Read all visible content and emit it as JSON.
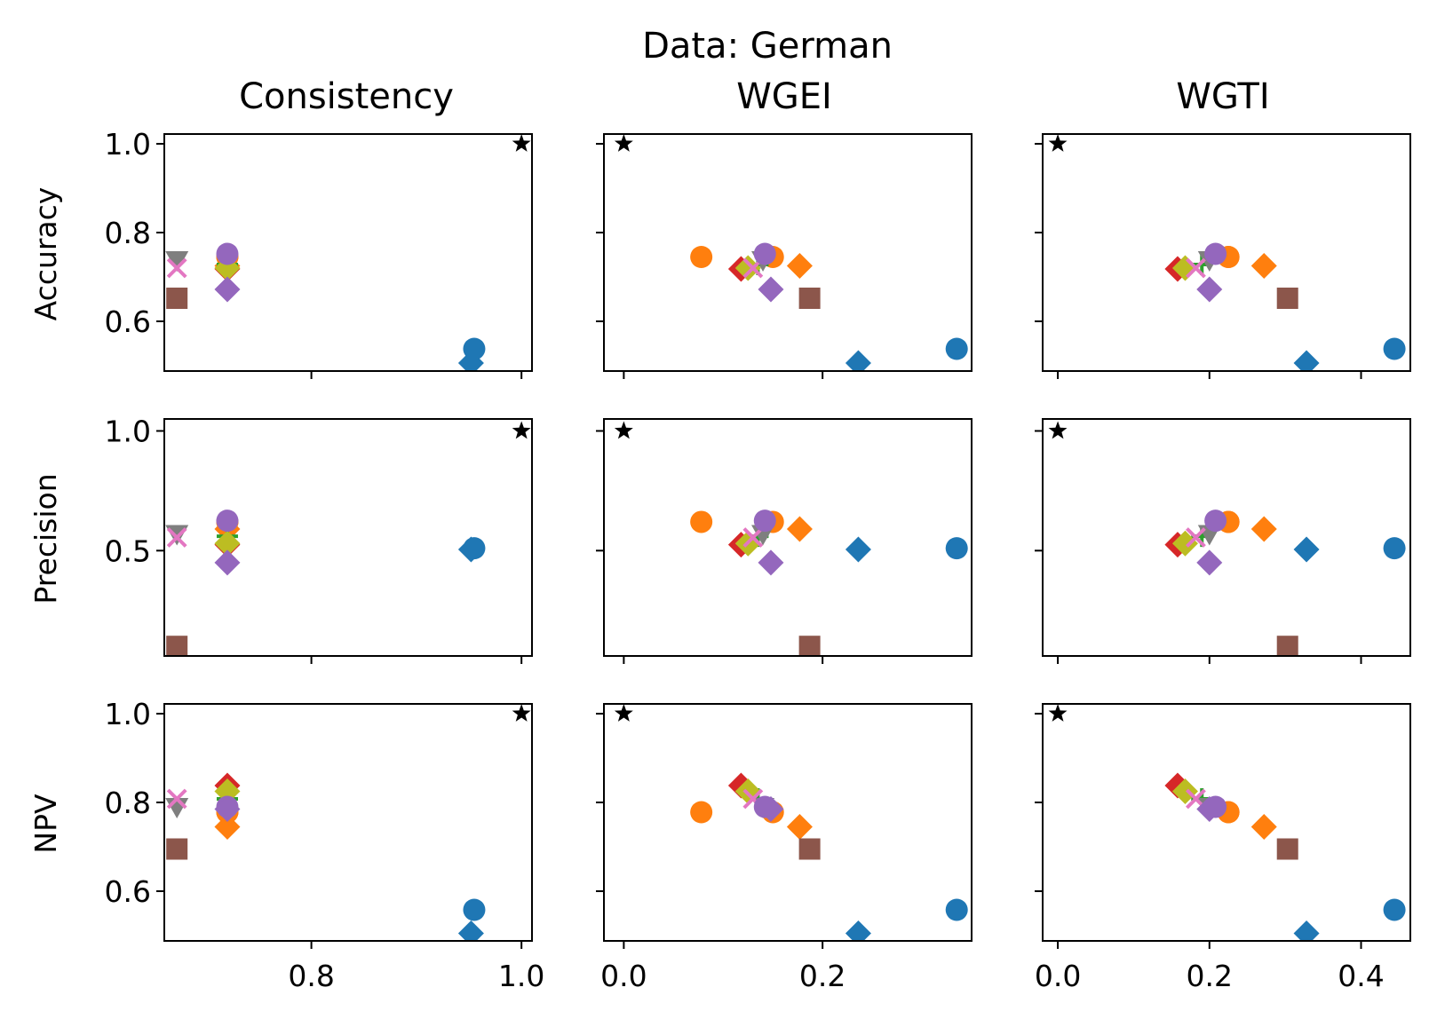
{
  "chart_data": {
    "type": "scatter",
    "suptitle": "Data: German",
    "col_titles": [
      "Consistency",
      "WGEI",
      "WGTI"
    ],
    "row_labels": [
      "Accuracy",
      "Precision",
      "NPV"
    ],
    "sharex": "columns",
    "sharey": "rows",
    "xlim": [
      [
        0.66,
        1.01
      ],
      [
        -0.02,
        0.35
      ],
      [
        -0.02,
        0.465
      ]
    ],
    "xticks": [
      [
        0.8,
        1.0
      ],
      [
        0.0,
        0.2
      ],
      [
        0.0,
        0.2,
        0.4
      ]
    ],
    "xtick_labels": [
      [
        "0.8",
        "1.0"
      ],
      [
        "0.0",
        "0.2"
      ],
      [
        "0.0",
        "0.2",
        "0.4"
      ]
    ],
    "ylim": [
      [
        0.488,
        1.022
      ],
      [
        0.06,
        1.05
      ],
      [
        0.488,
        1.022
      ]
    ],
    "yticks": [
      [
        0.6,
        0.8,
        1.0
      ],
      [
        0.5,
        1.0
      ],
      [
        0.6,
        0.8,
        1.0
      ]
    ],
    "ytick_labels": [
      [
        "0.6",
        "0.8",
        "1.0"
      ],
      [
        "0.5",
        "1.0"
      ],
      [
        "0.6",
        "0.8",
        "1.0"
      ]
    ],
    "grid": false,
    "colors": {
      "blue": "#1f77b4",
      "orange": "#ff7f0e",
      "green": "#2ca02c",
      "red": "#d62728",
      "purple": "#9467bd",
      "brown": "#8c564b",
      "pink": "#e377c2",
      "gray": "#7f7f7f",
      "olive": "#bcbd22",
      "black": "#000000"
    },
    "series": [
      {
        "color": "#000000",
        "marker": "star",
        "x": [
          1.0,
          0.0,
          0.0
        ],
        "y": [
          1.0,
          1.0,
          1.0
        ]
      },
      {
        "color": "#1f77b4",
        "marker": "circle",
        "x": [
          0.955,
          0.335,
          0.444
        ],
        "y": [
          0.538,
          0.51,
          0.558
        ]
      },
      {
        "color": "#1f77b4",
        "marker": "diamond",
        "x": [
          0.952,
          0.236,
          0.328
        ],
        "y": [
          0.506,
          0.505,
          0.505
        ]
      },
      {
        "color": "#ff7f0e",
        "marker": "circle",
        "x": [
          0.72,
          0.15,
          0.225
        ],
        "y": [
          0.745,
          0.62,
          0.778
        ]
      },
      {
        "color": "#ff7f0e",
        "marker": "circle",
        "x": [
          0.72,
          0.078,
          0.225
        ],
        "y": [
          0.745,
          0.62,
          0.778
        ]
      },
      {
        "color": "#ff7f0e",
        "marker": "diamond",
        "x": [
          0.72,
          0.177,
          0.272
        ],
        "y": [
          0.725,
          0.59,
          0.745
        ]
      },
      {
        "color": "#8c564b",
        "marker": "square",
        "x": [
          0.672,
          0.187,
          0.303
        ],
        "y": [
          0.652,
          0.1,
          0.695
        ]
      },
      {
        "color": "#d62728",
        "marker": "diamond",
        "x": [
          0.72,
          0.118,
          0.158
        ],
        "y": [
          0.718,
          0.525,
          0.838
        ]
      },
      {
        "color": "#2ca02c",
        "marker": "plus",
        "x": [
          0.72,
          0.135,
          0.19
        ],
        "y": [
          0.728,
          0.56,
          0.808
        ]
      },
      {
        "color": "#7f7f7f",
        "marker": "triangle_down",
        "x": [
          0.672,
          0.14,
          0.2
        ],
        "y": [
          0.738,
          0.57,
          0.79
        ]
      },
      {
        "color": "#bcbd22",
        "marker": "diamond",
        "x": [
          0.72,
          0.125,
          0.168
        ],
        "y": [
          0.72,
          0.53,
          0.825
        ]
      },
      {
        "color": "#e377c2",
        "marker": "x",
        "x": [
          0.672,
          0.13,
          0.182
        ],
        "y": [
          0.72,
          0.555,
          0.808
        ]
      },
      {
        "color": "#9467bd",
        "marker": "circle",
        "x": [
          0.72,
          0.142,
          0.208
        ],
        "y": [
          0.752,
          0.625,
          0.79
        ]
      },
      {
        "color": "#9467bd",
        "marker": "diamond",
        "x": [
          0.72,
          0.148,
          0.2
        ],
        "y": [
          0.672,
          0.45,
          0.785
        ]
      }
    ]
  }
}
